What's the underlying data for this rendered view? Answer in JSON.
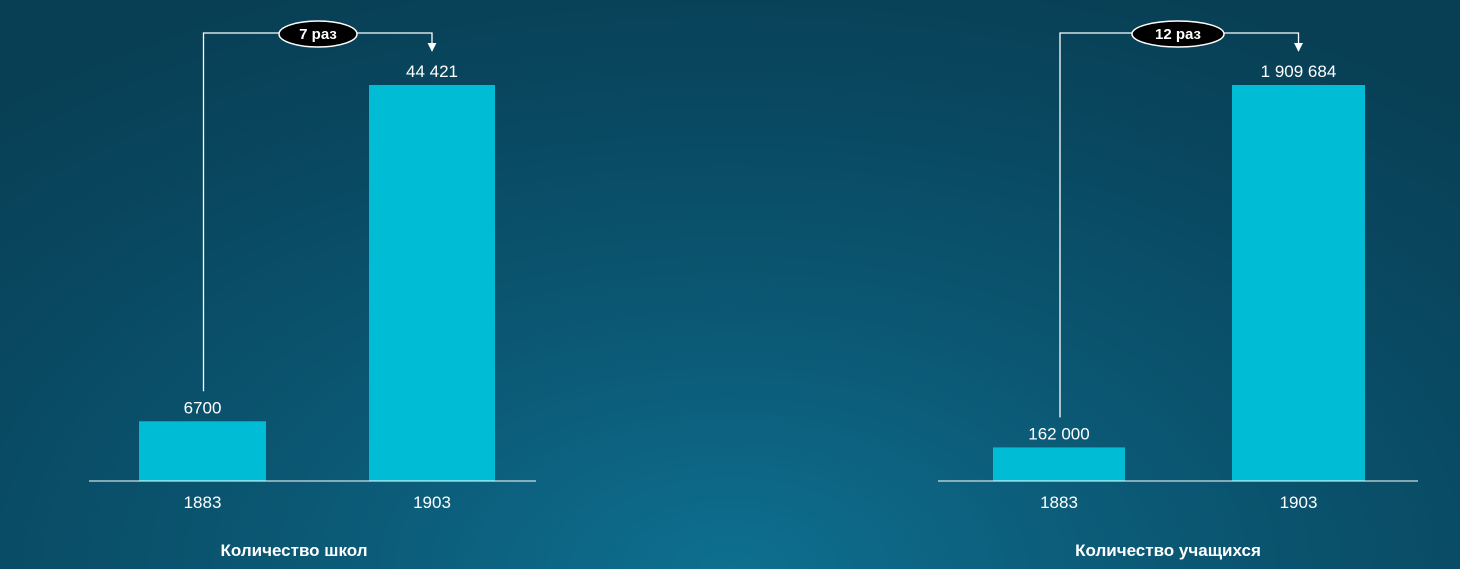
{
  "colors": {
    "bar": "#00bcd4",
    "text": "#ffffff",
    "badge_fill": "#000000",
    "connector": "#ffffff"
  },
  "chart_data": [
    {
      "type": "bar",
      "title": "Количество школ",
      "categories": [
        "1883",
        "1903"
      ],
      "values": [
        6700,
        44421
      ],
      "value_labels": [
        "6700",
        "44 421"
      ],
      "growth_label": "7 раз"
    },
    {
      "type": "bar",
      "title": "Количество учащихся",
      "categories": [
        "1883",
        "1903"
      ],
      "values": [
        162000,
        1909684
      ],
      "value_labels": [
        "162 000",
        "1 909 684"
      ],
      "growth_label": "12 раз"
    }
  ]
}
